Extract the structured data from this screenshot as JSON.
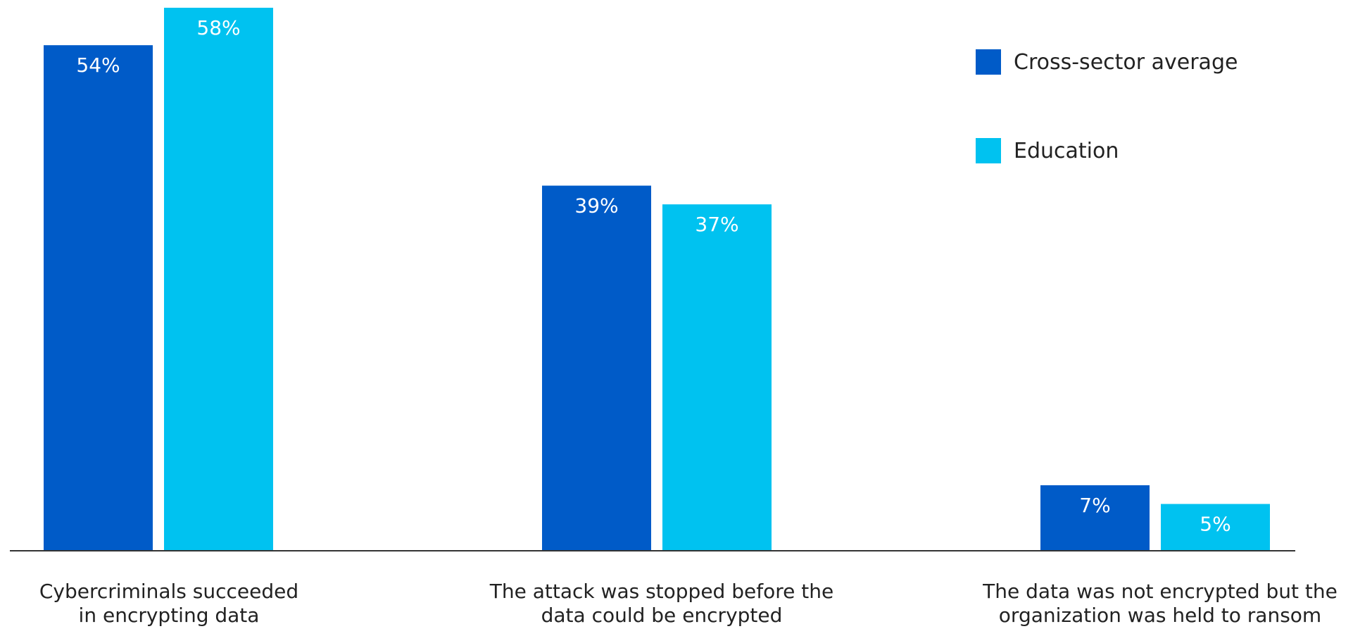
{
  "chart_data": {
    "type": "bar",
    "categories": [
      "Cybercriminals succeeded\nin encrypting data",
      "The attack was stopped before the\ndata could be encrypted",
      "The data was not encrypted but the\norganization was held to ransom"
    ],
    "series": [
      {
        "name": "Cross-sector average",
        "color": "#005bc8",
        "values": [
          54,
          39,
          7
        ],
        "labels": [
          "54%",
          "39%",
          "7%"
        ]
      },
      {
        "name": "Education",
        "color": "#00c2f0",
        "values": [
          58,
          37,
          5
        ],
        "labels": [
          "58%",
          "37%",
          "5%"
        ]
      }
    ],
    "ylim": [
      0,
      58
    ],
    "legend_position": "top-right",
    "grid": false
  }
}
